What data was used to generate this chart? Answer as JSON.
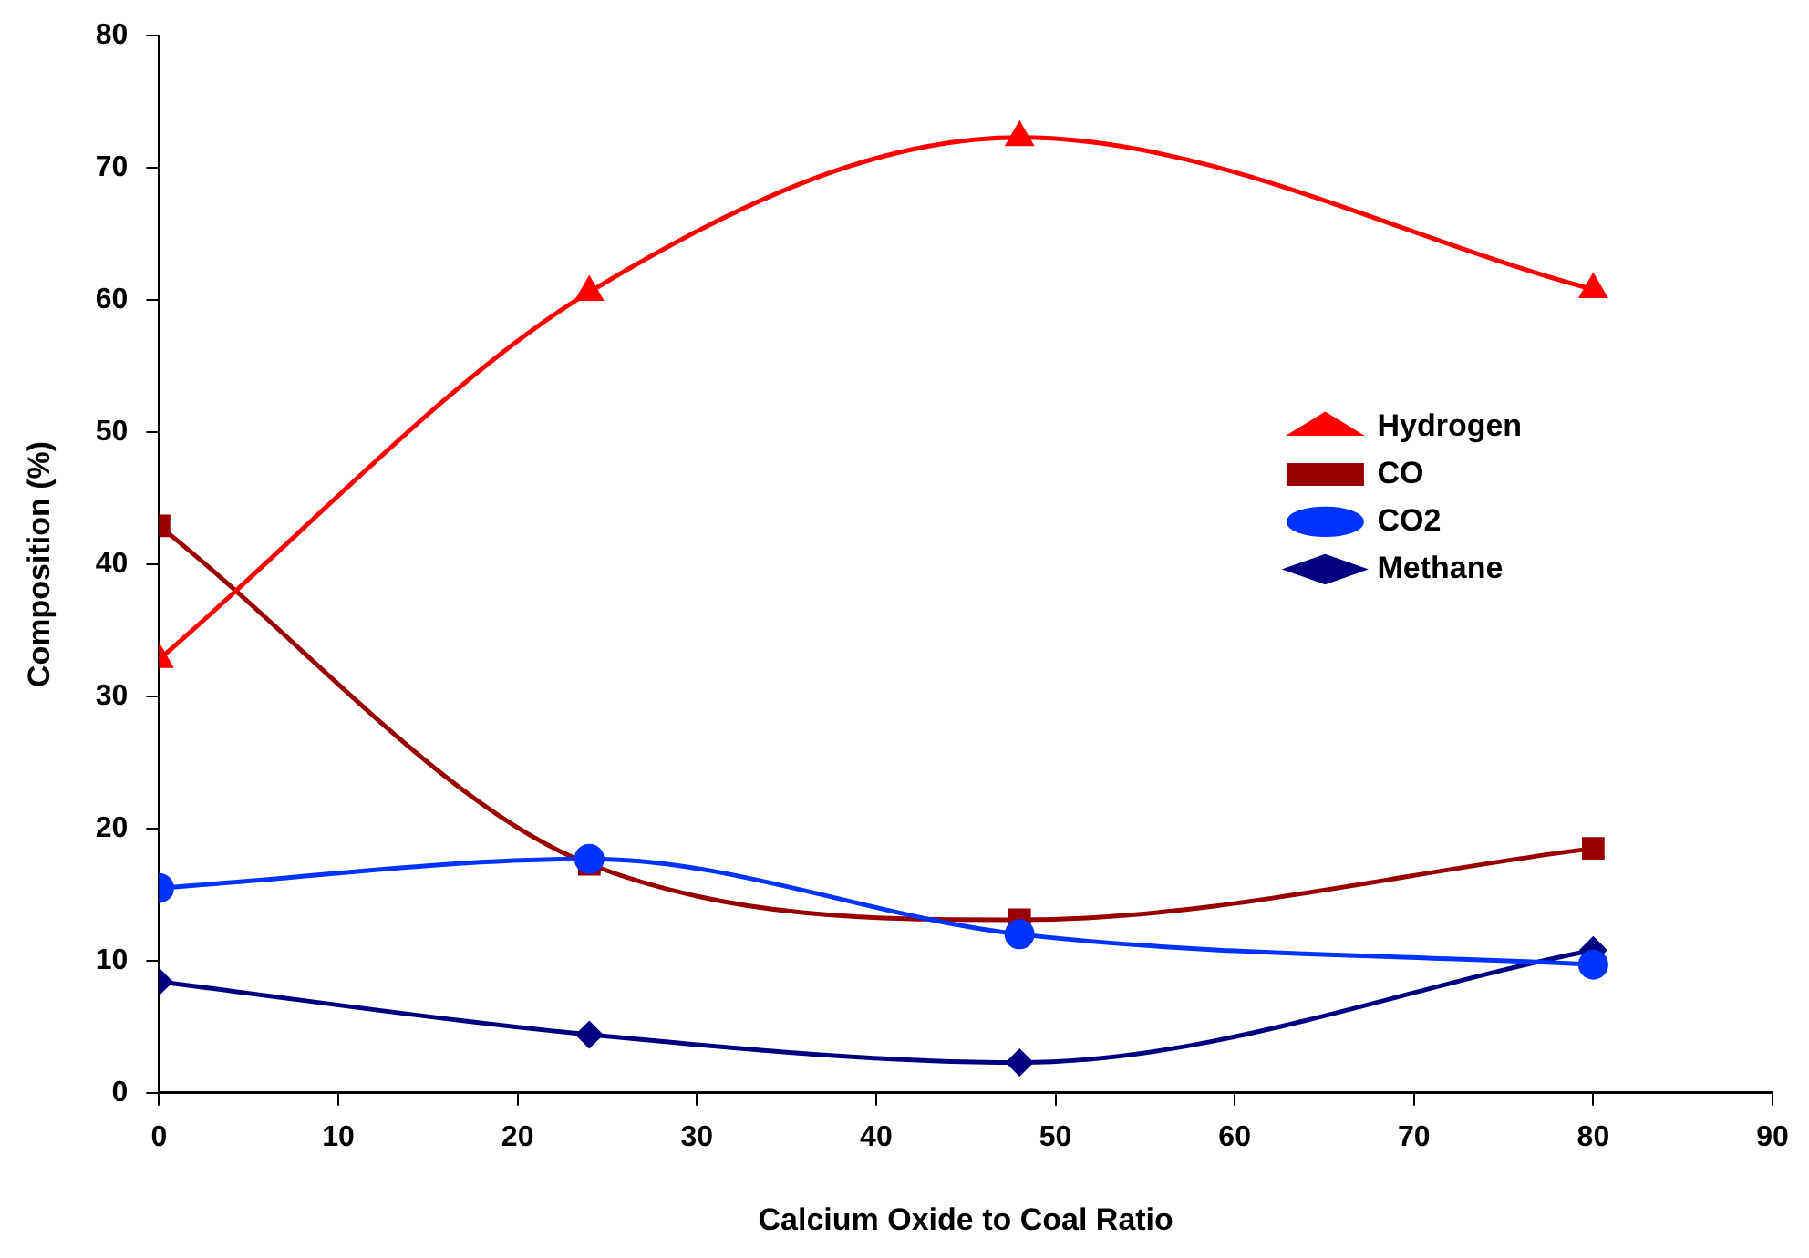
{
  "chart_data": {
    "type": "line",
    "xlabel": "Calcium Oxide to Coal Ratio",
    "ylabel": "Composition (%)",
    "x": [
      0,
      24,
      48,
      80
    ],
    "xlim": [
      0,
      90
    ],
    "xticks": [
      0,
      10,
      20,
      30,
      40,
      50,
      60,
      70,
      80,
      90
    ],
    "ylim": [
      0,
      80
    ],
    "yticks": [
      0,
      10,
      20,
      30,
      40,
      50,
      60,
      70,
      80
    ],
    "grid": false,
    "legend": "right",
    "series": [
      {
        "name": "Hydrogen",
        "color": "#ff0000",
        "marker": "triangle",
        "values": [
          32.8,
          60.6,
          72.3,
          60.8
        ]
      },
      {
        "name": "CO",
        "color": "#990000",
        "marker": "square",
        "values": [
          42.9,
          17.3,
          13.1,
          18.5
        ]
      },
      {
        "name": "CO2",
        "color": "#0033ff",
        "marker": "circle",
        "values": [
          15.5,
          17.7,
          12.0,
          9.7
        ]
      },
      {
        "name": "Methane",
        "color": "#000080",
        "marker": "diamond",
        "values": [
          8.4,
          4.4,
          2.3,
          10.8
        ]
      }
    ]
  }
}
